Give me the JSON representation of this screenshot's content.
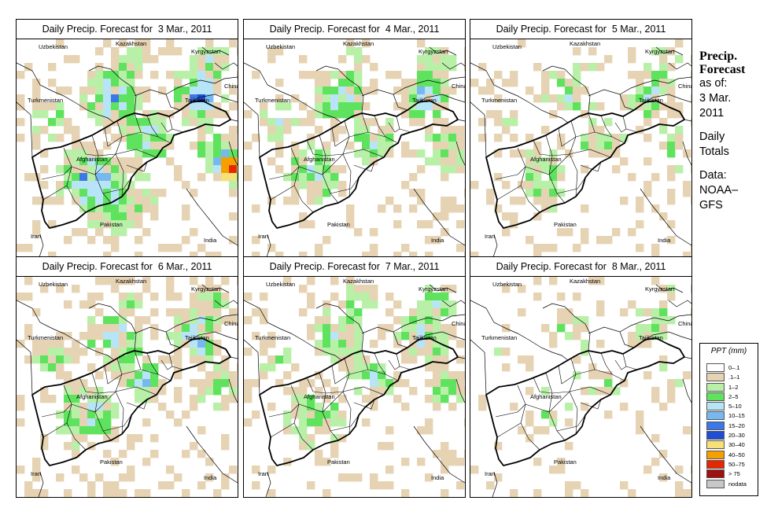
{
  "panels": [
    {
      "title": "Daily Precip. Forecast for  3 Mar., 2011",
      "seed": 11,
      "density": 0.62,
      "scale": 1.35,
      "hotspot": true
    },
    {
      "title": "Daily Precip. Forecast for  4 Mar., 2011",
      "seed": 23,
      "density": 0.55,
      "scale": 1.1,
      "hotspot": false
    },
    {
      "title": "Daily Precip. Forecast for  5 Mar., 2011",
      "seed": 37,
      "density": 0.42,
      "scale": 0.8,
      "hotspot": false
    },
    {
      "title": "Daily Precip. Forecast for  6 Mar., 2011",
      "seed": 41,
      "density": 0.58,
      "scale": 1.15,
      "hotspot": false
    },
    {
      "title": "Daily Precip. Forecast for  7 Mar., 2011",
      "seed": 53,
      "density": 0.52,
      "scale": 1.0,
      "hotspot": false
    },
    {
      "title": "Daily Precip. Forecast for  8 Mar., 2011",
      "seed": 67,
      "density": 0.22,
      "scale": 0.55,
      "hotspot": false
    }
  ],
  "countries": [
    "Uzbekistan",
    "Kazakhstan",
    "Kyrgyzstan",
    "China",
    "Turkmenistan",
    "Tajikistan",
    "Afghanistan",
    "Pakistan",
    "Iran",
    "India"
  ],
  "side": {
    "title1": "Precip.",
    "title2": "Forecast",
    "asof": "as of:",
    "date1": "3 Mar.",
    "date2": "2011",
    "daily": "Daily",
    "totals": "Totals",
    "data_label": "Data:",
    "source1": "NOAA–",
    "source2": "GFS"
  },
  "legend": {
    "title": "PPT (mm)",
    "items": [
      {
        "label": "0–.1",
        "color": "#ffffff"
      },
      {
        "label": ".1–1",
        "color": "#e6d3b3"
      },
      {
        "label": "1–2",
        "color": "#b8f0a8"
      },
      {
        "label": "2–5",
        "color": "#5fe35f"
      },
      {
        "label": "5–10",
        "color": "#b8e4f8"
      },
      {
        "label": "10–15",
        "color": "#78b8f0"
      },
      {
        "label": "15–20",
        "color": "#3c78e8"
      },
      {
        "label": "20–30",
        "color": "#1e4ed2"
      },
      {
        "label": "30–40",
        "color": "#f5e07a"
      },
      {
        "label": "40–50",
        "color": "#f5a000"
      },
      {
        "label": "50–75",
        "color": "#e62800"
      },
      {
        "label": "> 75",
        "color": "#a01010"
      },
      {
        "label": "nodata",
        "color": "#c8c8c8"
      }
    ]
  }
}
